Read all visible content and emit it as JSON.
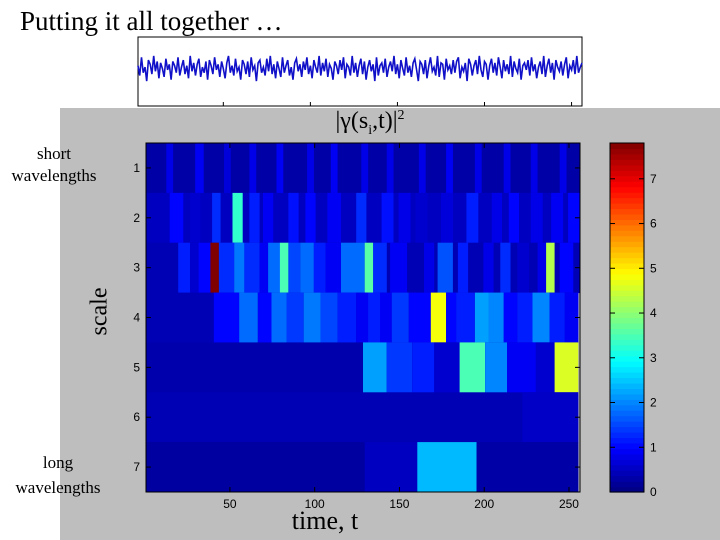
{
  "slide": {
    "title": "Putting it all together …",
    "short_label_1": "short",
    "short_label_2": "wavelengths",
    "long_label_1": "long",
    "long_label_2": "wavelengths"
  },
  "colors": {
    "panel_gray": "#bebebe",
    "signal_line": "#1010c8",
    "background": "#ffffff"
  },
  "chart_data": [
    {
      "type": "line",
      "description_role": "signal trace",
      "title": "",
      "xlabel": "",
      "ylabel": "",
      "xlim": [
        1,
        256
      ],
      "x_tick_positions": [
        50,
        100,
        150,
        200,
        250
      ],
      "y_tick_positions": [],
      "series": [
        {
          "values": [
            0.2,
            -0.5,
            0.8,
            -0.3,
            0.1,
            -0.9,
            0.6,
            0.3,
            -0.4,
            0.9,
            -0.2,
            0.5,
            -0.7,
            0.4,
            0.0,
            -0.6,
            0.7,
            -0.1,
            0.3,
            -0.8,
            0.5,
            0.2,
            -0.3,
            0.8,
            -0.5,
            0.1,
            0.6,
            -0.4,
            0.2,
            -0.7,
            0.9,
            -0.2,
            0.4,
            -0.5,
            0.3,
            0.7,
            -0.6,
            0.1,
            -0.3,
            0.5,
            -0.8,
            0.6,
            0.2,
            -0.4,
            0.8,
            -0.1,
            0.3,
            -0.6,
            0.5,
            0.0,
            -0.7,
            0.4,
            0.9,
            -0.3,
            0.2,
            -0.5,
            0.7,
            -0.2,
            0.1,
            -0.8,
            0.6,
            0.3,
            -0.4,
            0.5,
            -0.6,
            0.8,
            -0.1,
            0.2,
            -0.9,
            0.4,
            0.6,
            -0.3,
            0.1,
            -0.5,
            0.7,
            -0.2,
            0.9,
            -0.4,
            0.3,
            -0.7,
            0.5,
            0.0,
            -0.6,
            0.8,
            -0.3,
            0.2,
            0.6,
            -0.5,
            0.1,
            -0.8,
            0.4,
            0.7,
            -0.2,
            0.3,
            -0.6,
            0.5,
            -0.1,
            0.8,
            -0.4,
            0.2,
            -0.7,
            0.6,
            0.1,
            -0.3,
            0.9,
            -0.5,
            0.4,
            -0.2,
            0.7,
            -0.6,
            0.3,
            0.0,
            -0.8,
            0.5,
            0.2,
            -0.4,
            0.6,
            -0.1,
            0.8,
            -0.7,
            0.3,
            0.1,
            -0.5,
            0.9,
            -0.3,
            0.4,
            -0.6,
            0.2,
            0.7,
            -0.4,
            0.5,
            -0.8,
            0.1,
            0.6,
            -0.2,
            0.3,
            -0.9,
            0.8,
            -0.5,
            0.2,
            0.4,
            -0.3,
            0.7,
            -0.6,
            0.1,
            0.5,
            -0.2,
            0.9,
            -0.4,
            0.3,
            -0.7,
            0.6,
            0.0,
            -0.5,
            0.8,
            -0.3,
            0.2,
            -0.6,
            0.4,
            0.7,
            -0.1,
            -0.9,
            0.5,
            0.3,
            -0.4,
            0.6,
            -0.7,
            0.2,
            0.8,
            -0.2,
            0.1,
            -0.5,
            0.9,
            -0.6,
            0.4,
            0.3,
            -0.8,
            0.7,
            -0.1,
            0.2,
            -0.4,
            0.6,
            -0.3,
            0.5,
            0.8,
            -0.7,
            0.1,
            -0.2,
            0.4,
            -0.9,
            0.7,
            0.3,
            -0.5,
            0.2,
            0.6,
            -0.4,
            0.9,
            -0.1,
            -0.6,
            0.5,
            0.3,
            -0.8,
            0.2,
            0.7,
            -0.3,
            0.4,
            -0.5,
            0.8,
            0.1,
            -0.7,
            0.6,
            -0.2,
            0.3,
            -0.4,
            0.9,
            -0.6,
            0.5,
            0.0,
            -0.3,
            0.7,
            -0.8,
            0.2,
            0.4,
            -0.1,
            0.6,
            -0.5,
            0.8,
            -0.2,
            0.3,
            -0.7,
            0.1,
            0.5,
            -0.4,
            0.9,
            -0.6,
            0.2,
            0.7,
            -0.3,
            0.4,
            -0.8,
            0.6,
            0.1,
            -0.2,
            0.5,
            -0.5,
            0.3,
            0.8,
            -0.7,
            0.2,
            -0.1,
            0.6,
            -0.4,
            0.9,
            -0.3,
            0.1,
            0.4
          ]
        }
      ]
    },
    {
      "type": "heatmap",
      "title_main": "|γ(s",
      "title_sub": "i",
      "title_tail": ",t)|",
      "title_sup": "2",
      "xlabel": "time, t",
      "ylabel": "scale",
      "xlim": [
        1,
        256
      ],
      "x_ticks": [
        50,
        100,
        150,
        200,
        250
      ],
      "y_ticks": [
        1,
        2,
        3,
        4,
        5,
        6,
        7
      ],
      "colorbar": {
        "min": 0,
        "max": 7.8,
        "ticks": [
          0,
          1,
          2,
          3,
          4,
          5,
          6,
          7
        ]
      },
      "rows": [
        {
          "scale": 1,
          "cells": [
            [
              1,
              256,
              0.3
            ],
            [
              13,
              16,
              0.8
            ],
            [
              30,
              34,
              0.9
            ],
            [
              47,
              50,
              0.7
            ],
            [
              62,
              65,
              0.8
            ],
            [
              78,
              81,
              0.9
            ],
            [
              96,
              99,
              0.8
            ],
            [
              110,
              113,
              0.9
            ],
            [
              128,
              131,
              0.8
            ],
            [
              143,
              146,
              0.8
            ],
            [
              162,
              165,
              0.8
            ],
            [
              178,
              181,
              0.9
            ],
            [
              195,
              198,
              0.8
            ],
            [
              212,
              215,
              0.8
            ],
            [
              228,
              231,
              0.8
            ],
            [
              245,
              248,
              0.8
            ]
          ]
        },
        {
          "scale": 2,
          "cells": [
            [
              1,
              256,
              0.5
            ],
            [
              15,
              22,
              1.0
            ],
            [
              27,
              32,
              0.6
            ],
            [
              40,
              44,
              1.3
            ],
            [
              52,
              57,
              3.3
            ],
            [
              62,
              67,
              1.2
            ],
            [
              70,
              75,
              0.9
            ],
            [
              85,
              90,
              1.1
            ],
            [
              95,
              100,
              1.0
            ],
            [
              108,
              115,
              0.9
            ],
            [
              125,
              130,
              1.3
            ],
            [
              140,
              146,
              1.1
            ],
            [
              150,
              156,
              0.8
            ],
            [
              160,
              166,
              0.6
            ],
            [
              175,
              181,
              0.7
            ],
            [
              190,
              196,
              1.2
            ],
            [
              205,
              210,
              0.8
            ],
            [
              215,
              220,
              1.0
            ],
            [
              228,
              234,
              0.8
            ],
            [
              240,
              246,
              0.9
            ],
            [
              250,
              256,
              1.0
            ]
          ]
        },
        {
          "scale": 3,
          "cells": [
            [
              1,
              256,
              0.4
            ],
            [
              20,
              26,
              1.2
            ],
            [
              27,
              31,
              0.6
            ],
            [
              32,
              38,
              1.0
            ],
            [
              39,
              43,
              7.8
            ],
            [
              44,
              52,
              1.3
            ],
            [
              53,
              58,
              1.9
            ],
            [
              59,
              67,
              1.3
            ],
            [
              68,
              72,
              0.9
            ],
            [
              73,
              79,
              1.8
            ],
            [
              80,
              84,
              3.5
            ],
            [
              85,
              91,
              1.5
            ],
            [
              92,
              99,
              1.8
            ],
            [
              100,
              106,
              1.2
            ],
            [
              107,
              115,
              0.9
            ],
            [
              116,
              129,
              1.8
            ],
            [
              130,
              134,
              3.6
            ],
            [
              135,
              142,
              1.3
            ],
            [
              145,
              154,
              0.9
            ],
            [
              165,
              170,
              0.8
            ],
            [
              173,
              181,
              1.6
            ],
            [
              185,
              190,
              1.2
            ],
            [
              200,
              205,
              0.8
            ],
            [
              210,
              215,
              1.3
            ],
            [
              220,
              226,
              0.6
            ],
            [
              232,
              236,
              0.8
            ],
            [
              237,
              241,
              4.3
            ],
            [
              245,
              252,
              1.0
            ]
          ]
        },
        {
          "scale": 4,
          "cells": [
            [
              1,
              255,
              0.4
            ],
            [
              41,
              55,
              1.0
            ],
            [
              56,
              66,
              1.8
            ],
            [
              67,
              74,
              1.0
            ],
            [
              75,
              83,
              1.8
            ],
            [
              84,
              93,
              1.4
            ],
            [
              94,
              103,
              1.9
            ],
            [
              104,
              113,
              1.5
            ],
            [
              114,
              124,
              1.2
            ],
            [
              125,
              131,
              0.9
            ],
            [
              132,
              138,
              1.2
            ],
            [
              139,
              145,
              0.9
            ],
            [
              146,
              155,
              1.4
            ],
            [
              156,
              168,
              1.0
            ],
            [
              169,
              177,
              4.8
            ],
            [
              178,
              183,
              1.0
            ],
            [
              184,
              194,
              1.2
            ],
            [
              195,
              202,
              2.2
            ],
            [
              203,
              211,
              2.0
            ],
            [
              212,
              219,
              1.0
            ],
            [
              220,
              228,
              1.2
            ],
            [
              229,
              238,
              2.0
            ],
            [
              239,
              247,
              1.2
            ],
            [
              248,
              255,
              0.9
            ]
          ]
        },
        {
          "scale": 5,
          "cells": [
            [
              1,
              255,
              0.35
            ],
            [
              129,
              142,
              2.2
            ],
            [
              143,
              157,
              1.4
            ],
            [
              158,
              170,
              1.2
            ],
            [
              171,
              185,
              0.6
            ],
            [
              186,
              200,
              3.5
            ],
            [
              201,
              213,
              2.0
            ],
            [
              214,
              230,
              0.9
            ],
            [
              231,
              241,
              0.6
            ],
            [
              242,
              255,
              4.6
            ]
          ]
        },
        {
          "scale": 6,
          "cells": [
            [
              1,
              255,
              0.4
            ],
            [
              223,
              255,
              0.55
            ]
          ]
        },
        {
          "scale": 7,
          "cells": [
            [
              1,
              255,
              0.25
            ],
            [
              130,
              160,
              0.5
            ],
            [
              161,
              195,
              2.4
            ],
            [
              196,
              255,
              0.3
            ]
          ]
        }
      ]
    }
  ]
}
